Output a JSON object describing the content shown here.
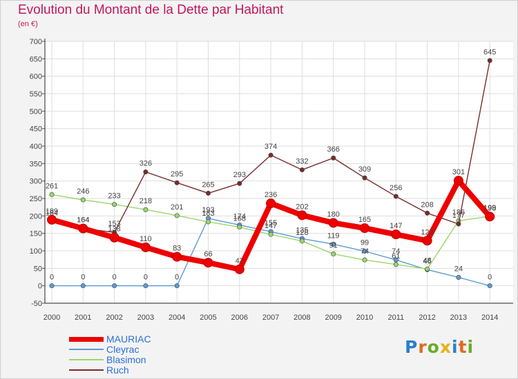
{
  "chart_data": {
    "type": "line",
    "title": "Evolution du Montant de la Dette par Habitant",
    "subtitle": "(en €)",
    "x": [
      "2000",
      "2001",
      "2002",
      "2003",
      "2004",
      "2005",
      "2006",
      "2007",
      "2008",
      "2009",
      "2010",
      "2011",
      "2012",
      "2013",
      "2014"
    ],
    "y_ticks": [
      -50,
      0,
      50,
      100,
      150,
      200,
      250,
      300,
      350,
      400,
      450,
      500,
      550,
      600,
      650,
      700
    ],
    "ylim": [
      -50,
      700
    ],
    "grid": true,
    "legend_position": "bottom-left",
    "series": [
      {
        "name": "MAURIAC",
        "color": "#ee0000",
        "values": [
          189,
          164,
          138,
          110,
          83,
          66,
          47,
          236,
          202,
          180,
          165,
          147,
          129,
          301,
          198
        ]
      },
      {
        "name": "Cleyrac",
        "color": "#5b9bd5",
        "values": [
          0,
          0,
          0,
          0,
          0,
          193,
          174,
          155,
          135,
          119,
          99,
          74,
          46,
          24,
          0
        ]
      },
      {
        "name": "Blasimon",
        "color": "#9ad66a",
        "values": [
          261,
          246,
          233,
          218,
          201,
          183,
          168,
          147,
          128,
          91,
          74,
          61,
          48,
          186,
          199
        ]
      },
      {
        "name": "Ruch",
        "color": "#7b2b2b",
        "values": [
          184,
          164,
          153,
          326,
          295,
          265,
          293,
          374,
          332,
          366,
          309,
          256,
          208,
          177,
          645
        ]
      }
    ]
  },
  "logo": {
    "text": "Proxiti"
  }
}
